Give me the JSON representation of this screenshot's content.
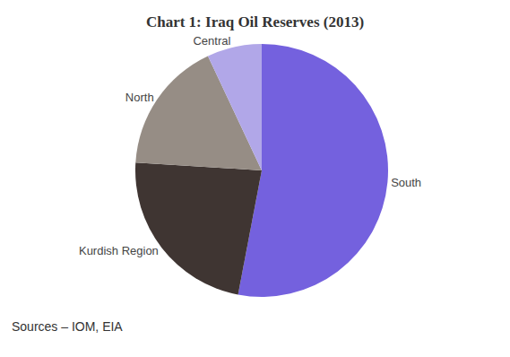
{
  "chart_data": {
    "type": "pie",
    "title": "Chart 1: Iraq Oil Reserves (2013)",
    "categories": [
      "South",
      "Kurdish Region",
      "North",
      "Central"
    ],
    "values": [
      53,
      23,
      17,
      7
    ],
    "colors": [
      "#7461de",
      "#3f3532",
      "#968d85",
      "#b1a7e8"
    ],
    "annotations": [
      "Sources – IOM, EIA"
    ]
  }
}
